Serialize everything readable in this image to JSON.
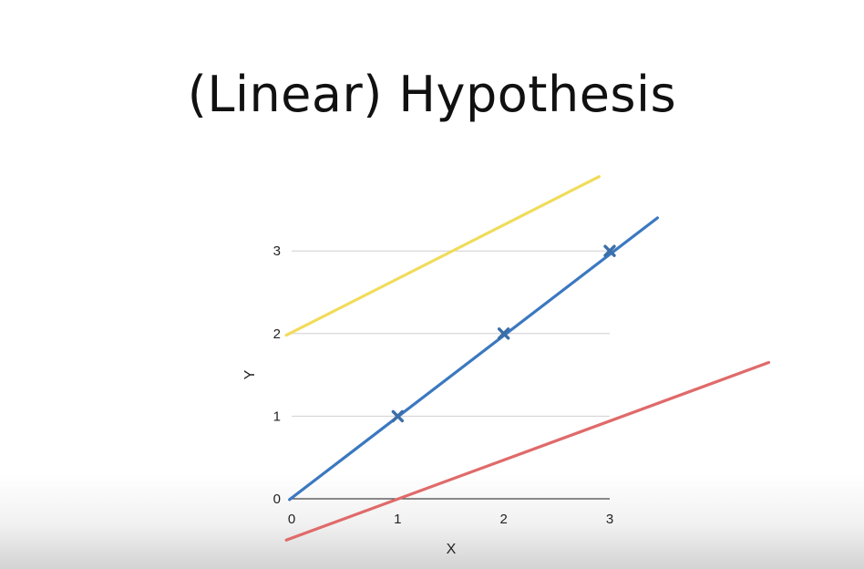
{
  "slide": {
    "title": "(Linear) Hypothesis"
  },
  "chart_data": {
    "type": "line",
    "xlabel": "X",
    "ylabel": "Y",
    "xlim": [
      0,
      3
    ],
    "ylim": [
      0,
      3
    ],
    "x_ticks": [
      "0",
      "1",
      "2",
      "3"
    ],
    "y_ticks": [
      "0",
      "1",
      "2",
      "3"
    ],
    "grid": "horizontal",
    "legend": "none",
    "lines": [
      {
        "color": "#f0dc5a",
        "x": [
          -0.05,
          2.9
        ],
        "y": [
          1.98,
          3.9
        ]
      },
      {
        "color": "#3b78c0",
        "x": [
          -0.02,
          3.45
        ],
        "y": [
          -0.01,
          3.4
        ]
      },
      {
        "color": "#e06a6a",
        "x": [
          -0.05,
          4.5
        ],
        "y": [
          -0.5,
          1.65
        ]
      }
    ],
    "points": {
      "color": "#3b6ea8",
      "marker": "x",
      "x": [
        1,
        2,
        3
      ],
      "y": [
        1,
        2,
        3
      ]
    }
  }
}
